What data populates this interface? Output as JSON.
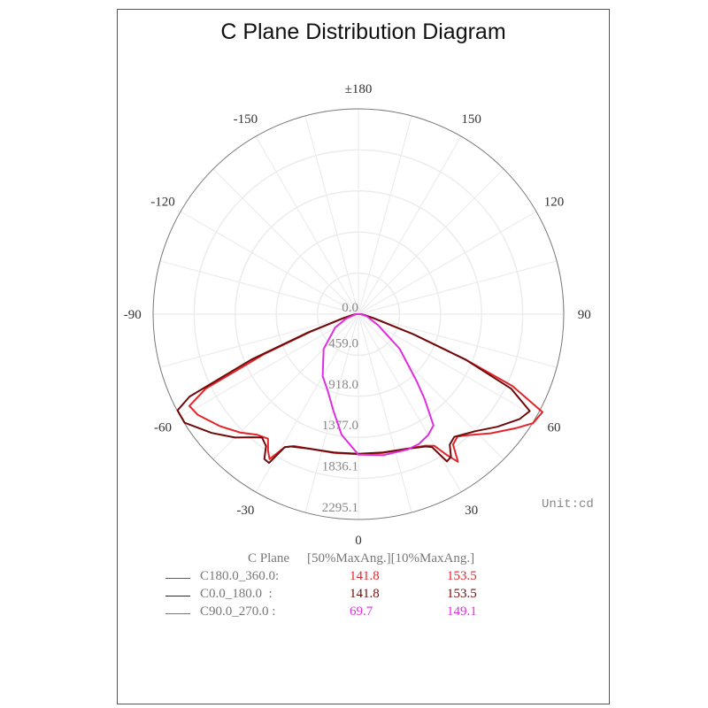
{
  "title": "C Plane Distribution Diagram",
  "unit_label": "Unit:cd",
  "chart_data": {
    "type": "polar-line",
    "title": "C Plane Distribution Diagram",
    "angle_tick_labels": [
      "0",
      "30",
      "60",
      "90",
      "120",
      "150",
      "±180",
      "-150",
      "-120",
      "-90",
      "-60",
      "-30"
    ],
    "radial_tick_labels": [
      "0.0",
      "459.0",
      "918.0",
      "1377.0",
      "1836.1",
      "2295.1"
    ],
    "radial_range": [
      0,
      2295.1
    ],
    "unit": "cd",
    "grid": true,
    "series": [
      {
        "name": "C180.0_360.0",
        "color": "#e4242b",
        "angles": [
          -90,
          -80,
          -75,
          -70,
          -67,
          -64,
          -61.5,
          -58,
          -51,
          -45,
          -40,
          -36,
          -33.5,
          -31.5,
          -29,
          -26,
          -20,
          -10,
          0,
          10,
          20,
          27,
          30,
          32,
          34,
          36,
          39,
          42,
          48,
          54,
          58,
          62,
          65,
          67,
          70,
          75,
          80,
          90
        ],
        "values": [
          30,
          80,
          180,
          560,
          1150,
          1900,
          2150,
          2120,
          1990,
          1870,
          1760,
          1720,
          1830,
          1900,
          1700,
          1640,
          1600,
          1575,
          1565,
          1575,
          1600,
          1650,
          1700,
          1850,
          1990,
          1800,
          1760,
          1820,
          1990,
          2170,
          2300,
          2330,
          1900,
          1300,
          650,
          180,
          80,
          30
        ]
      },
      {
        "name": "C0.0_180.0",
        "color": "#6e0b0b",
        "angles": [
          -90,
          -80,
          -75,
          -70,
          -67,
          -64,
          -62,
          -58,
          -51,
          -45,
          -40.5,
          -38,
          -35,
          -33,
          -31,
          -29,
          -27,
          -20,
          -10,
          0,
          10,
          20,
          27,
          29,
          31,
          33,
          35,
          38,
          45,
          51,
          57,
          60.5,
          64,
          67,
          70,
          75,
          80,
          90
        ],
        "values": [
          30,
          80,
          180,
          600,
          1300,
          2100,
          2290,
          2290,
          2110,
          1950,
          1810,
          1750,
          1800,
          1930,
          1940,
          1700,
          1660,
          1600,
          1570,
          1560,
          1570,
          1600,
          1660,
          1700,
          1920,
          1900,
          1780,
          1740,
          1850,
          2000,
          2150,
          2200,
          1900,
          1300,
          650,
          180,
          80,
          30
        ]
      },
      {
        "name": "C90.0_270.0",
        "color": "#dd2ee0",
        "angles": [
          -90,
          -70,
          -60,
          -45,
          -30,
          -22,
          -15,
          -8,
          0,
          10,
          20,
          25,
          30,
          34,
          38,
          41,
          50,
          61,
          75,
          90
        ],
        "values": [
          30,
          150,
          300,
          550,
          800,
          920,
          1100,
          1360,
          1570,
          1600,
          1610,
          1600,
          1560,
          1500,
          1200,
          990,
          600,
          250,
          100,
          30
        ]
      }
    ]
  },
  "legend": {
    "header_plane": "C Plane",
    "header_cols": "[50%MaxAng.][10%MaxAng.]",
    "rows": [
      {
        "label": "C180.0_360.0:",
        "v50": "141.8",
        "v10": "153.5",
        "color": "#e4242b"
      },
      {
        "label": "C0.0_180.0  :",
        "v50": "141.8",
        "v10": "153.5",
        "color": "#6e0b0b"
      },
      {
        "label": "C90.0_270.0 :",
        "v50": "69.7",
        "v10": "149.1",
        "color": "#dd2ee0"
      }
    ]
  }
}
